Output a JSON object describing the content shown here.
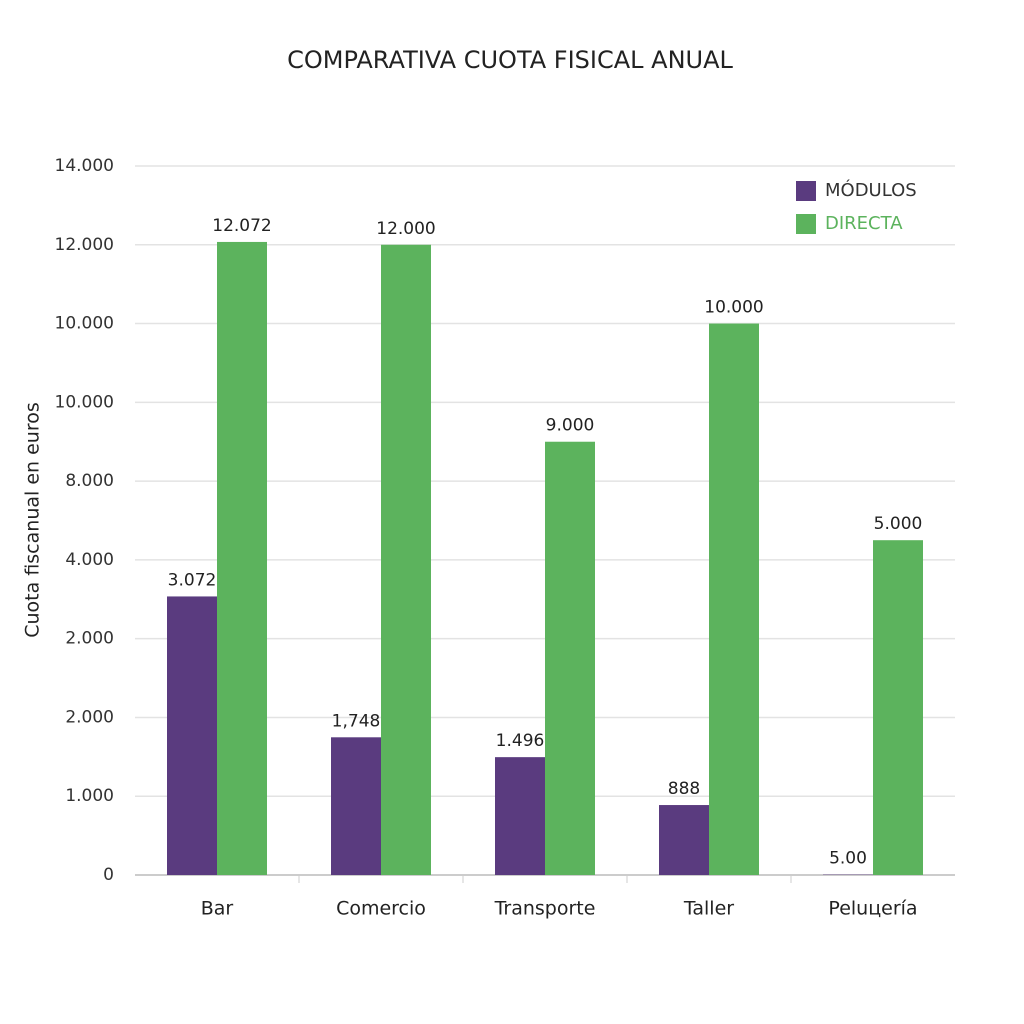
{
  "chart_data": {
    "type": "bar",
    "title": "COMPARATIVA CUOTA FISICAL ANUAL",
    "y_label": "Cuota fiscanual en euros",
    "categories": [
      "Bar",
      "Comercio",
      "Transporte",
      "Taller",
      "Peluцería"
    ],
    "series": [
      {
        "name": "MÓDULOS",
        "color": "#5a3b7f",
        "values": [
          3072,
          1748,
          1496,
          888,
          5
        ],
        "value_labels": [
          "3.072",
          "1,748",
          "1.496",
          "888",
          "5.00"
        ]
      },
      {
        "name": "DIRECTA",
        "color": "#5cb35d",
        "values": [
          12072,
          12000,
          9000,
          10000,
          5000
        ],
        "value_labels": [
          "12.072",
          "12.000",
          "9.000",
          "10.000",
          "5.000"
        ]
      }
    ],
    "ylim": [
      0,
      14000
    ],
    "yticks": [
      0,
      {
        "value": 1000,
        "label": "1.000"
      },
      {
        "value": 2000,
        "label": "2.000"
      },
      {
        "value": 2000,
        "label": "2.000"
      },
      {
        "value": 4000,
        "label": "4.000"
      },
      {
        "value": 8000,
        "label": "8.000"
      },
      {
        "value": 10000,
        "label": "10.000"
      },
      {
        "value": 10000,
        "label": "10.000"
      },
      {
        "value": 12000,
        "label": "12.000"
      },
      {
        "value": 14000,
        "label": "14.000"
      }
    ],
    "grid": true,
    "legend": "top-right"
  }
}
